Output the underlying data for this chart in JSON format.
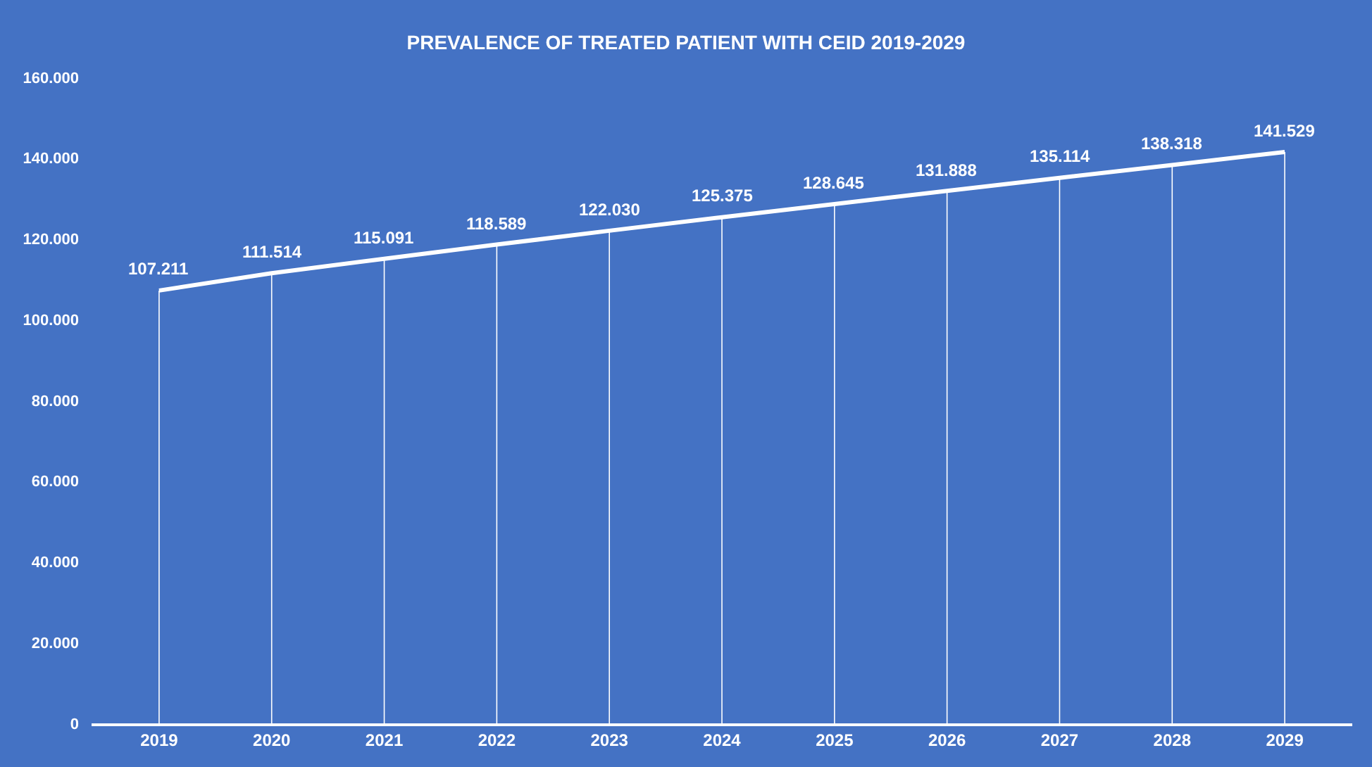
{
  "chart_data": {
    "type": "line",
    "title": "PREVALENCE OF TREATED PATIENT WITH CEID 2019-2029",
    "categories": [
      "2019",
      "2020",
      "2021",
      "2022",
      "2023",
      "2024",
      "2025",
      "2026",
      "2027",
      "2028",
      "2029"
    ],
    "series": [
      {
        "color": "#ffffff",
        "values": [
          107211,
          111514,
          115091,
          118589,
          122030,
          125375,
          128645,
          131888,
          135114,
          138318,
          141529
        ],
        "value_labels": [
          "107.211",
          "111.514",
          "115.091",
          "118.589",
          "122.030",
          "125.375",
          "128.645",
          "131.888",
          "135.114",
          "138.318",
          "141.529"
        ]
      }
    ],
    "ylim": [
      0,
      160000
    ],
    "yticks": [
      0,
      {
        "value": 20000,
        "label": "20.000"
      },
      {
        "value": 40000,
        "label": "40.000"
      },
      {
        "value": 60000,
        "label": "60.000"
      },
      {
        "value": 80000,
        "label": "80.000"
      },
      {
        "value": 100000,
        "label": "100.000"
      },
      {
        "value": 120000,
        "label": "120.000"
      },
      {
        "value": 140000,
        "label": "140.000"
      },
      {
        "value": 160000,
        "label": "160.000"
      }
    ],
    "grid": "x",
    "marker": "none",
    "line_style": "solid"
  }
}
